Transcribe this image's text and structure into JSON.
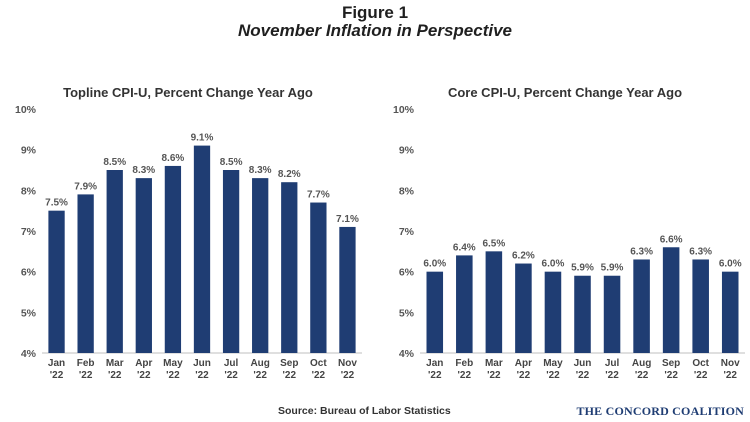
{
  "figure": {
    "title": "Figure 1",
    "subtitle": "November Inflation in Perspective",
    "source": "Source: Bureau of Labor Statistics",
    "brand": "THE CONCORD COALITION"
  },
  "colors": {
    "bar": "#1f3d73"
  },
  "chart_data": [
    {
      "type": "bar",
      "title": "Topline CPI-U, Percent Change Year Ago",
      "categories": [
        [
          "Jan",
          "'22"
        ],
        [
          "Feb",
          "'22"
        ],
        [
          "Mar",
          "'22"
        ],
        [
          "Apr",
          "'22"
        ],
        [
          "May",
          "'22"
        ],
        [
          "Jun",
          "'22"
        ],
        [
          "Jul",
          "'22"
        ],
        [
          "Aug",
          "'22"
        ],
        [
          "Sep",
          "'22"
        ],
        [
          "Oct",
          "'22"
        ],
        [
          "Nov",
          "'22"
        ]
      ],
      "values": [
        7.5,
        7.9,
        8.5,
        8.3,
        8.6,
        9.1,
        8.5,
        8.3,
        8.2,
        7.7,
        7.1
      ],
      "data_labels": [
        "7.5%",
        "7.9%",
        "8.5%",
        "8.3%",
        "8.6%",
        "9.1%",
        "8.5%",
        "8.3%",
        "8.2%",
        "7.7%",
        "7.1%"
      ],
      "yticks": [
        "4%",
        "5%",
        "6%",
        "7%",
        "8%",
        "9%",
        "10%"
      ],
      "ylim": [
        4,
        10
      ],
      "grid": false,
      "xlabel": "",
      "ylabel": ""
    },
    {
      "type": "bar",
      "title": "Core CPI-U, Percent Change Year Ago",
      "categories": [
        [
          "Jan",
          "'22"
        ],
        [
          "Feb",
          "'22"
        ],
        [
          "Mar",
          "'22"
        ],
        [
          "Apr",
          "'22"
        ],
        [
          "May",
          "'22"
        ],
        [
          "Jun",
          "'22"
        ],
        [
          "Jul",
          "'22"
        ],
        [
          "Aug",
          "'22"
        ],
        [
          "Sep",
          "'22"
        ],
        [
          "Oct",
          "'22"
        ],
        [
          "Nov",
          "'22"
        ]
      ],
      "values": [
        6.0,
        6.4,
        6.5,
        6.2,
        6.0,
        5.9,
        5.9,
        6.3,
        6.6,
        6.3,
        6.0
      ],
      "data_labels": [
        "6.0%",
        "6.4%",
        "6.5%",
        "6.2%",
        "6.0%",
        "5.9%",
        "5.9%",
        "6.3%",
        "6.6%",
        "6.3%",
        "6.0%"
      ],
      "yticks": [
        "4%",
        "5%",
        "6%",
        "7%",
        "8%",
        "9%",
        "10%"
      ],
      "ylim": [
        4,
        10
      ],
      "grid": false,
      "xlabel": "",
      "ylabel": ""
    }
  ]
}
